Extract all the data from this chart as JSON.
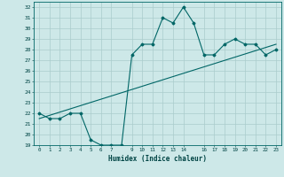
{
  "title": "",
  "xlabel": "Humidex (Indice chaleur)",
  "bg_color": "#cde8e8",
  "line_color": "#006666",
  "x_data": [
    0,
    1,
    2,
    3,
    4,
    5,
    6,
    7,
    8,
    9,
    10,
    11,
    12,
    13,
    14,
    15,
    16,
    17,
    18,
    19,
    20,
    21,
    22,
    23
  ],
  "y_data": [
    22,
    21.5,
    21.5,
    22,
    22,
    19.5,
    19,
    19,
    19,
    27.5,
    28.5,
    28.5,
    31,
    30.5,
    32,
    30.5,
    27.5,
    27.5,
    28.5,
    29,
    28.5,
    28.5,
    27.5,
    28
  ],
  "trend_x": [
    0,
    23
  ],
  "trend_y": [
    21.5,
    28.5
  ],
  "xlim": [
    -0.5,
    23.5
  ],
  "ylim": [
    19,
    32.5
  ],
  "yticks": [
    19,
    20,
    21,
    22,
    23,
    24,
    25,
    26,
    27,
    28,
    29,
    30,
    31,
    32
  ],
  "xticks": [
    0,
    1,
    2,
    3,
    4,
    5,
    6,
    7,
    9,
    10,
    11,
    12,
    13,
    14,
    16,
    17,
    18,
    19,
    20,
    21,
    22,
    23
  ],
  "xtick_labels": [
    "0",
    "1",
    "2",
    "3",
    "4",
    "5",
    "6",
    "7",
    "9",
    "10",
    "11",
    "12",
    "13",
    "14",
    "16",
    "17",
    "18",
    "19",
    "20",
    "21",
    "22",
    "23"
  ],
  "grid_color": "#aacccc",
  "font_color": "#004444"
}
